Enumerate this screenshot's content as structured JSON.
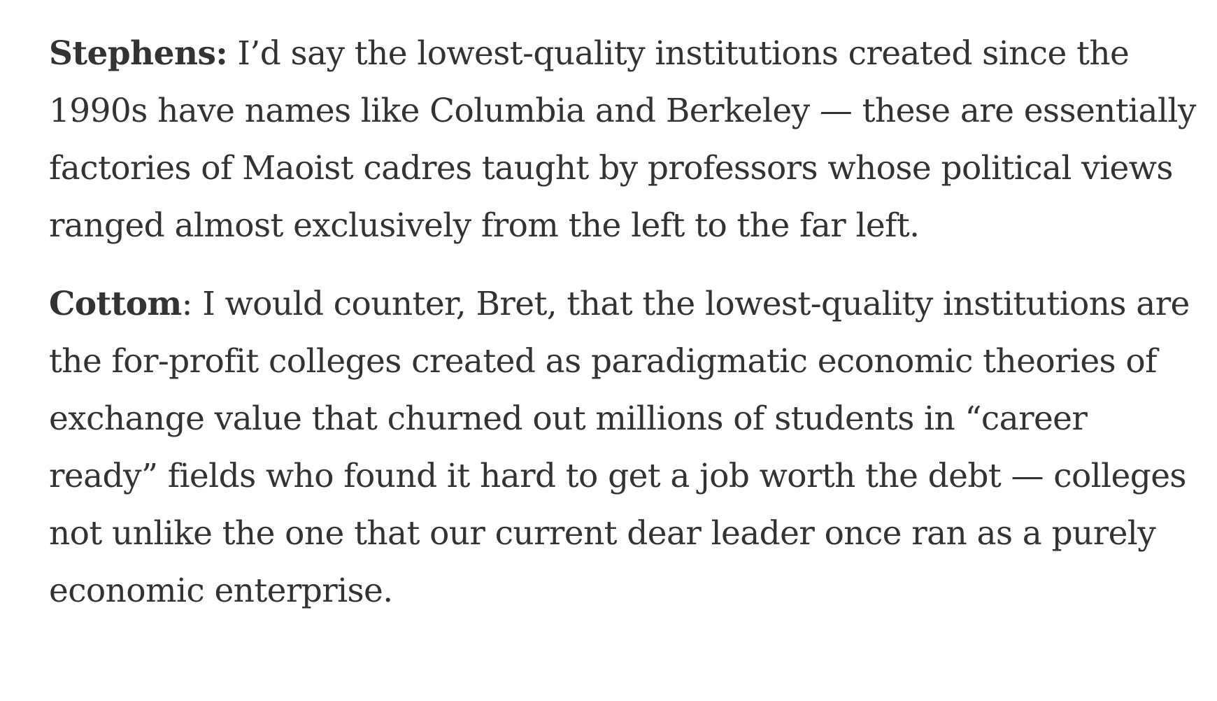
{
  "paragraphs": [
    {
      "speaker": "Stephens:",
      "separator": " ",
      "text": "I’d say the lowest-quality institutions created since the 1990s have names like Columbia and Berkeley — these are essentially factories of Maoist cadres taught by professors whose political views ranged almost exclusively from the left to the far left."
    },
    {
      "speaker": "Cottom",
      "separator": ": ",
      "text": "I would counter, Bret, that the lowest-quality institutions are the for-profit colleges created as paradigmatic economic theories of exchange value that churned out millions of students in “career ready” fields who found it hard to get a job worth the debt — colleges not unlike the one that our current dear leader once ran as a purely economic enterprise."
    }
  ]
}
